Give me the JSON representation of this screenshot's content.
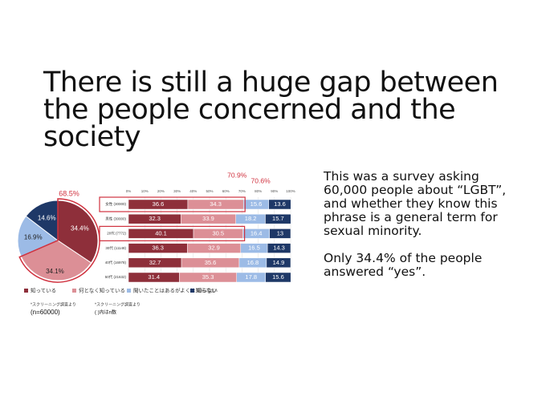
{
  "slide": {
    "title_lines": [
      "There is still a huge gap between",
      "the people concerned and the",
      "society"
    ],
    "body_lines": [
      "This was a survey asking",
      "60,000 people about “LGBT”,",
      "and whether they know this",
      "phrase is a general term for",
      "sexual minority."
    ],
    "body_lines_2": [
      "Only 34.4% of the people",
      "answered “yes”."
    ]
  },
  "chart_data": [
    {
      "type": "pie",
      "annotation": "68.5%",
      "categories": [
        "知っている",
        "何となく知っている",
        "聞いたことはあるがよくは知らない",
        "知らない"
      ],
      "values": [
        34.4,
        34.1,
        16.9,
        14.6
      ],
      "value_labels": [
        "34.4%",
        "34.1%",
        "16.9%",
        "14.6%"
      ],
      "colors": [
        "#8e2f3a",
        "#dc8f96",
        "#9cbbe6",
        "#1e3867"
      ],
      "note": "*スクリーニング調査より",
      "note_2": "(n=60000)"
    },
    {
      "type": "bar",
      "orientation": "horizontal",
      "stacked": true,
      "annotations": [
        "70.9%",
        "70.6%"
      ],
      "categories": [
        "女性 (30000)",
        "男性 (30000)",
        "20代 (7772)",
        "30代 (11148)",
        "40代 (16978)",
        "50代 (21632)"
      ],
      "series": [
        {
          "name": "知っている",
          "color": "#8e2f3a",
          "values": [
            36.6,
            32.3,
            40.1,
            36.3,
            32.7,
            31.4
          ]
        },
        {
          "name": "何となく知っている",
          "color": "#dc8f96",
          "values": [
            34.3,
            33.9,
            30.5,
            32.9,
            35.6,
            35.3
          ]
        },
        {
          "name": "聞いたことはあるがよくは知らない",
          "color": "#9cbbe6",
          "values": [
            15.6,
            18.2,
            16.4,
            16.5,
            16.8,
            17.8
          ]
        },
        {
          "name": "知らない",
          "color": "#1e3867",
          "values": [
            13.6,
            15.7,
            13.0,
            14.3,
            14.9,
            15.6
          ]
        }
      ],
      "xlim": [
        0,
        100
      ],
      "xticks": [
        {
          "value": 0,
          "label": "0%"
        },
        {
          "value": 10,
          "label": "10%"
        },
        {
          "value": 20,
          "label": "20%"
        },
        {
          "value": 30,
          "label": "30%"
        },
        {
          "value": 40,
          "label": "40%"
        },
        {
          "value": 50,
          "label": "50%"
        },
        {
          "value": 60,
          "label": "60%"
        },
        {
          "value": 70,
          "label": "70%"
        },
        {
          "value": 80,
          "label": "80%"
        },
        {
          "value": 90,
          "label": "90%"
        },
        {
          "value": 100,
          "label": "100%"
        }
      ],
      "note": "*スクリーニング調査より",
      "note_2": "( )内はn数"
    }
  ]
}
